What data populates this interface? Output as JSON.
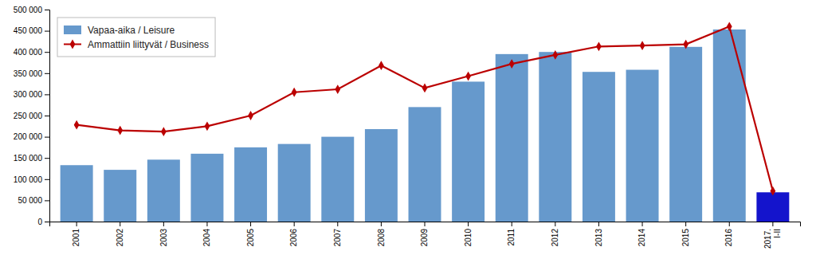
{
  "chart_data": {
    "type": "bar",
    "categories": [
      "2001",
      "2002",
      "2003",
      "2004",
      "2005",
      "2006",
      "2007",
      "2008",
      "2009",
      "2010",
      "2011",
      "2012",
      "2013",
      "2014",
      "2015",
      "2016",
      "2017.\nI-II"
    ],
    "series": [
      {
        "name": "Vapaa-aika / Leisure",
        "type": "bar",
        "color": "#6699cc",
        "colors": [
          "#6699cc",
          "#6699cc",
          "#6699cc",
          "#6699cc",
          "#6699cc",
          "#6699cc",
          "#6699cc",
          "#6699cc",
          "#6699cc",
          "#6699cc",
          "#6699cc",
          "#6699cc",
          "#6699cc",
          "#6699cc",
          "#6699cc",
          "#6699cc",
          "#1414cc"
        ],
        "values": [
          133000,
          122000,
          146000,
          160000,
          175000,
          183000,
          200000,
          218000,
          270000,
          330000,
          395000,
          400000,
          353000,
          358000,
          412000,
          453000,
          69000
        ]
      },
      {
        "name": "Ammattiin liittyvät / Business",
        "type": "line",
        "color": "#bb0000",
        "marker": "diamond",
        "values": [
          228000,
          215000,
          212000,
          225000,
          250000,
          305000,
          312000,
          368000,
          315000,
          343000,
          372000,
          393000,
          413000,
          415000,
          418000,
          460000,
          72000
        ]
      }
    ],
    "ylim": [
      0,
      500000
    ],
    "yticks": [
      0,
      {
        "value": 50000,
        "label": "50 000"
      },
      {
        "value": 100000,
        "label": "100 000"
      },
      {
        "value": 150000,
        "label": "150 000"
      },
      {
        "value": 200000,
        "label": "200 000"
      },
      {
        "value": 250000,
        "label": "250 000"
      },
      {
        "value": 300000,
        "label": "300 000"
      },
      {
        "value": 350000,
        "label": "350 000"
      },
      {
        "value": 400000,
        "label": "400 000"
      },
      {
        "value": 450000,
        "label": "450 000"
      },
      {
        "value": 500000,
        "label": "500 000"
      }
    ],
    "grid": false,
    "legend": "upper left"
  }
}
